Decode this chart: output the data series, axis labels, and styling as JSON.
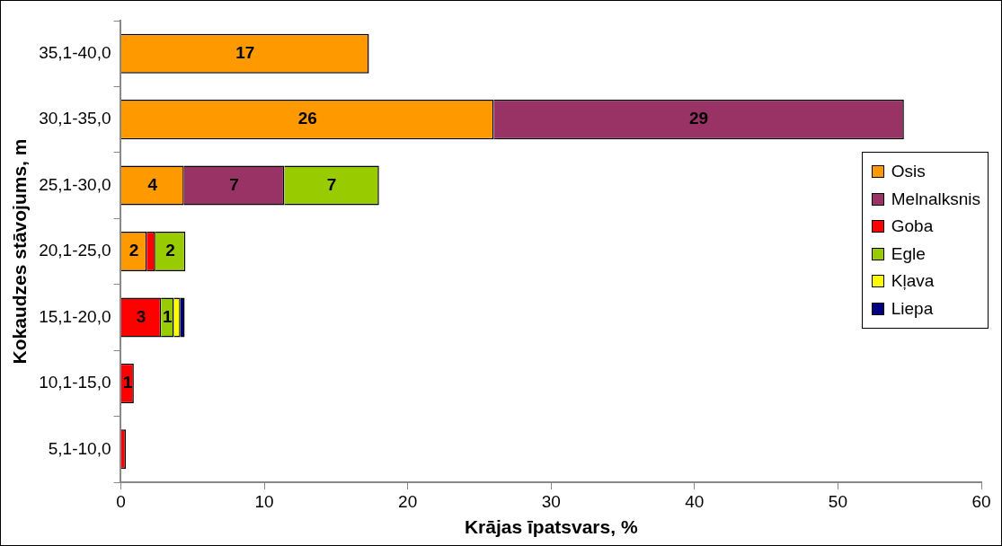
{
  "chart_data": {
    "type": "bar",
    "orientation": "horizontal",
    "stacked": true,
    "xlabel": "Krājas īpatsvars, %",
    "ylabel": "Kokaudzes stāvojums, m",
    "categories": [
      "35,1-40,0",
      "30,1-35,0",
      "25,1-30,0",
      "20,1-25,0",
      "15,1-20,0",
      "10,1-15,0",
      "5,1-10,0"
    ],
    "series": [
      {
        "name": "Osis",
        "color": "#ff9900",
        "values": [
          17.3,
          26,
          4.4,
          1.8,
          null,
          null,
          null
        ],
        "value_labels": [
          "17",
          "26",
          "4",
          "2",
          null,
          null,
          null
        ]
      },
      {
        "name": "Melnalksnis",
        "color": "#993366",
        "values": [
          null,
          28.6,
          7,
          null,
          null,
          null,
          null
        ],
        "value_labels": [
          null,
          "29",
          "7",
          null,
          null,
          null,
          null
        ]
      },
      {
        "name": "Goba",
        "color": "#ff0000",
        "values": [
          null,
          null,
          null,
          0.6,
          2.8,
          0.9,
          0.35
        ],
        "value_labels": [
          null,
          null,
          null,
          null,
          "3",
          "1",
          null
        ]
      },
      {
        "name": "Egle",
        "color": "#99cc00",
        "values": [
          null,
          null,
          6.6,
          2.1,
          0.9,
          null,
          null
        ],
        "value_labels": [
          null,
          null,
          "7",
          "2",
          "1",
          null,
          null
        ]
      },
      {
        "name": "Kļava",
        "color": "#ffff00",
        "values": [
          null,
          null,
          null,
          null,
          0.45,
          null,
          null
        ]
      },
      {
        "name": "Liepa",
        "color": "#000080",
        "values": [
          null,
          null,
          null,
          null,
          0.3,
          null,
          null
        ]
      }
    ],
    "xlim": [
      0,
      60
    ],
    "xticks": [
      0,
      10,
      20,
      30,
      40,
      50,
      60
    ],
    "grid": false,
    "legend": "right"
  }
}
